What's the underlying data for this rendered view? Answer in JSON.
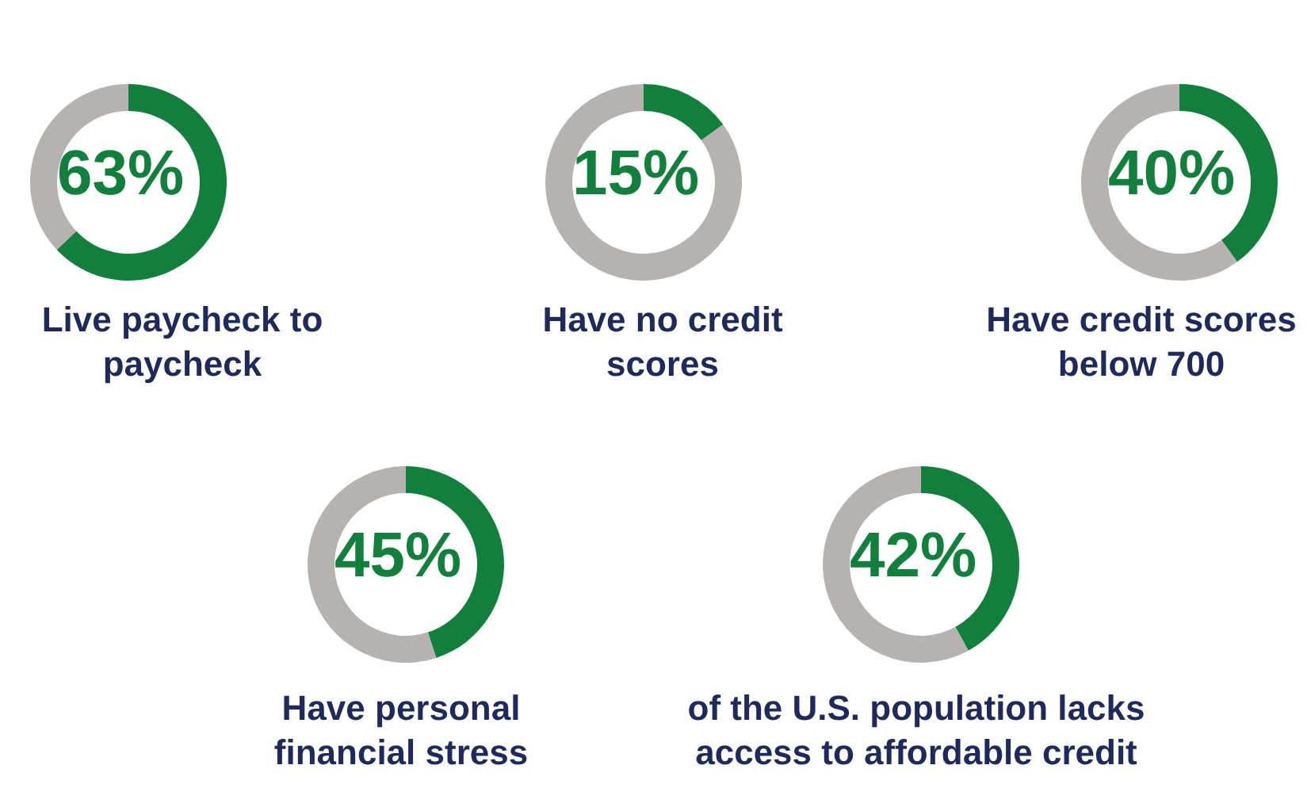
{
  "chart_data": [
    {
      "type": "donut",
      "title": "Live paycheck to paycheck",
      "categories": [
        null,
        null
      ],
      "values": [
        63,
        37
      ],
      "colors": [
        "#12803c",
        "#b5b2b0"
      ],
      "annotations": [
        "63%"
      ]
    },
    {
      "type": "donut",
      "title": "Have no credit scores",
      "categories": [
        null,
        null
      ],
      "values": [
        15,
        85
      ],
      "colors": [
        "#12803c",
        "#b5b2b0"
      ],
      "annotations": [
        "15%"
      ]
    },
    {
      "type": "donut",
      "title": "Have credit scores below 700",
      "categories": [
        null,
        null
      ],
      "values": [
        40,
        60
      ],
      "colors": [
        "#12803c",
        "#b5b2b0"
      ],
      "annotations": [
        "40%"
      ]
    },
    {
      "type": "donut",
      "title": "Have personal financial stress",
      "categories": [
        null,
        null
      ],
      "values": [
        45,
        55
      ],
      "colors": [
        "#12803c",
        "#b5b2b0"
      ],
      "annotations": [
        "45%"
      ]
    },
    {
      "type": "donut",
      "title": "of the U.S. population lacks access to affordable credit",
      "categories": [
        null,
        null
      ],
      "values": [
        42,
        58
      ],
      "colors": [
        "#12803c",
        "#b5b2b0"
      ],
      "annotations": [
        "42%"
      ]
    }
  ]
}
